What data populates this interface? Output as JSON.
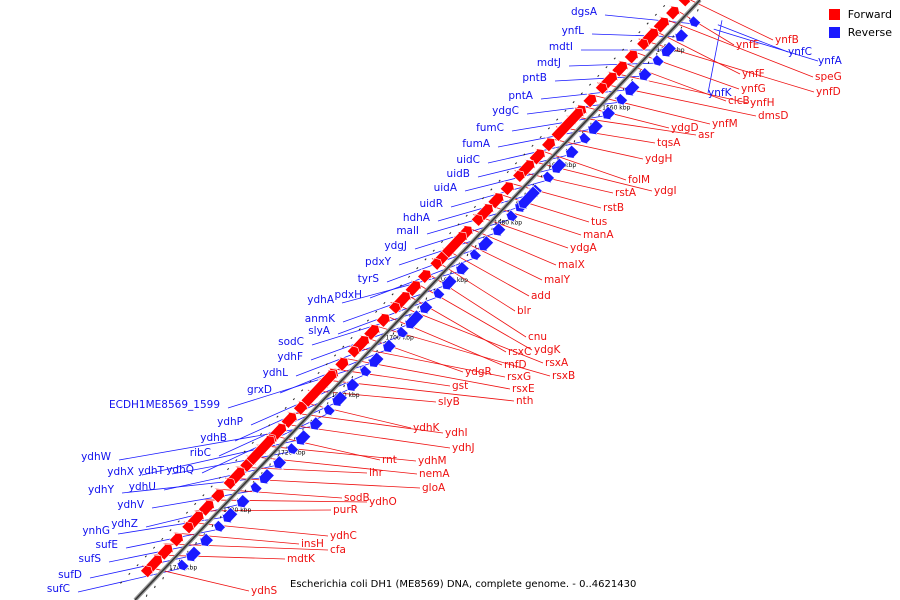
{
  "legend": {
    "forward_label": "Forward",
    "reverse_label": "Reverse",
    "forward_color": "#ff0000",
    "reverse_color": "#1a1aff"
  },
  "caption": "Escherichia coli DH1 (ME8569) DNA, complete genome. - 0..4621430",
  "ticks": [
    "1650 kbp",
    "1660 kbp",
    "1670 kbp",
    "1680 kbp",
    "1690 kbp",
    "1700 kbp",
    "1710 kbp",
    "1720 kbp",
    "1730 kbp",
    "1740 kbp"
  ],
  "reverse_genes": [
    "dgsA",
    "ynfL",
    "mdtI",
    "mdtJ",
    "pntB",
    "pntA",
    "ydgC",
    "fumC",
    "fumA",
    "uidC",
    "uidB",
    "uidA",
    "uidR",
    "hdhA",
    "malI",
    "ydgJ",
    "pdxY",
    "tyrS",
    "pdxH",
    "ydhA",
    "anmK",
    "slyA",
    "sodC",
    "ydhF",
    "ydhL",
    "grxD",
    "ECDH1ME8569_1599",
    "ydhP",
    "ydhB",
    "ribC",
    "ydhQ",
    "ydhW",
    "ydhX",
    "ydhT",
    "ydhU",
    "ydhY",
    "ydhV",
    "ydhZ",
    "ynhG",
    "sufE",
    "sufS",
    "sufD",
    "sufC",
    "ynfK",
    "ynfC",
    "ynfA"
  ],
  "forward_genes": [
    "ynfB",
    "ynfE",
    "speG",
    "ynfF",
    "ynfD",
    "ynfG",
    "clcB",
    "ynfH",
    "dmsD",
    "ynfM",
    "ydgD",
    "asr",
    "tqsA",
    "ydgH",
    "folM",
    "ydgI",
    "rstA",
    "rstB",
    "tus",
    "manA",
    "ydgA",
    "malX",
    "malY",
    "add",
    "blr",
    "cnu",
    "ydgK",
    "rsxC",
    "rsxA",
    "rnfD",
    "rsxB",
    "ydgR",
    "rsxG",
    "rsxE",
    "gst",
    "nth",
    "slyB",
    "ydhK",
    "ydhI",
    "ydhJ",
    "rnt",
    "ydhM",
    "nemA",
    "lhr",
    "gloA",
    "sodB",
    "ydhO",
    "purR",
    "ydhC",
    "insH",
    "cfa",
    "mdtK",
    "ydhS"
  ]
}
